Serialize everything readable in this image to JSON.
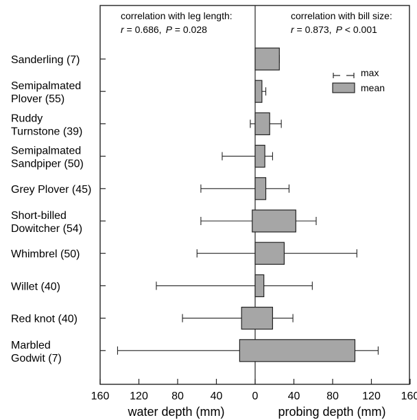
{
  "chart_data": {
    "type": "bar",
    "categories": [
      {
        "lines": [
          "Sanderling (7)"
        ]
      },
      {
        "lines": [
          "Semipalmated",
          "Plover (55)"
        ]
      },
      {
        "lines": [
          "Ruddy",
          "Turnstone (39)"
        ]
      },
      {
        "lines": [
          "Semipalmated",
          "Sandpiper (50)"
        ]
      },
      {
        "lines": [
          "Grey Plover (45)"
        ]
      },
      {
        "lines": [
          "Short-billed",
          "Dowitcher (54)"
        ]
      },
      {
        "lines": [
          "Whimbrel (50)"
        ]
      },
      {
        "lines": [
          "Willet (40)"
        ]
      },
      {
        "lines": [
          "Red knot (40)"
        ]
      },
      {
        "lines": [
          "Marbled",
          "Godwit (7)"
        ]
      }
    ],
    "series": [
      {
        "name": "mean",
        "kind": "bar",
        "water_depth_mean": [
          0,
          0,
          0,
          0,
          0,
          3,
          0,
          0,
          14,
          16
        ],
        "probing_depth_mean": [
          25,
          7,
          15,
          10,
          11,
          42,
          30,
          9,
          18,
          103
        ]
      },
      {
        "name": "max",
        "kind": "errorbar",
        "water_depth_max": [
          0,
          0,
          5,
          34,
          56,
          56,
          60,
          102,
          75,
          142
        ],
        "probing_depth_max": [
          25,
          11,
          27,
          18,
          35,
          63,
          105,
          59,
          39,
          127
        ]
      }
    ],
    "annotations": {
      "left": {
        "line1": "correlation with leg length:",
        "r_label": "r",
        "r_value": " = 0.686,",
        "p_label": "P",
        "p_value": " = 0.028"
      },
      "right": {
        "line1": "correlation with bill size:",
        "r_label": "r",
        "r_value": " = 0.873,",
        "p_label": "P",
        "p_value": " < 0.001"
      }
    },
    "legend": {
      "items": [
        "max",
        "mean"
      ],
      "position": "top-right"
    },
    "xticks": [
      "160",
      "120",
      "80",
      "40",
      "0",
      "40",
      "80",
      "120",
      "160"
    ],
    "xlim": [
      -170,
      170
    ],
    "xlabel_left": "water depth (mm)",
    "xlabel_right": "probing depth (mm)",
    "colors": {
      "bar_fill": "#a6a6a6",
      "stroke": "#222222"
    }
  }
}
